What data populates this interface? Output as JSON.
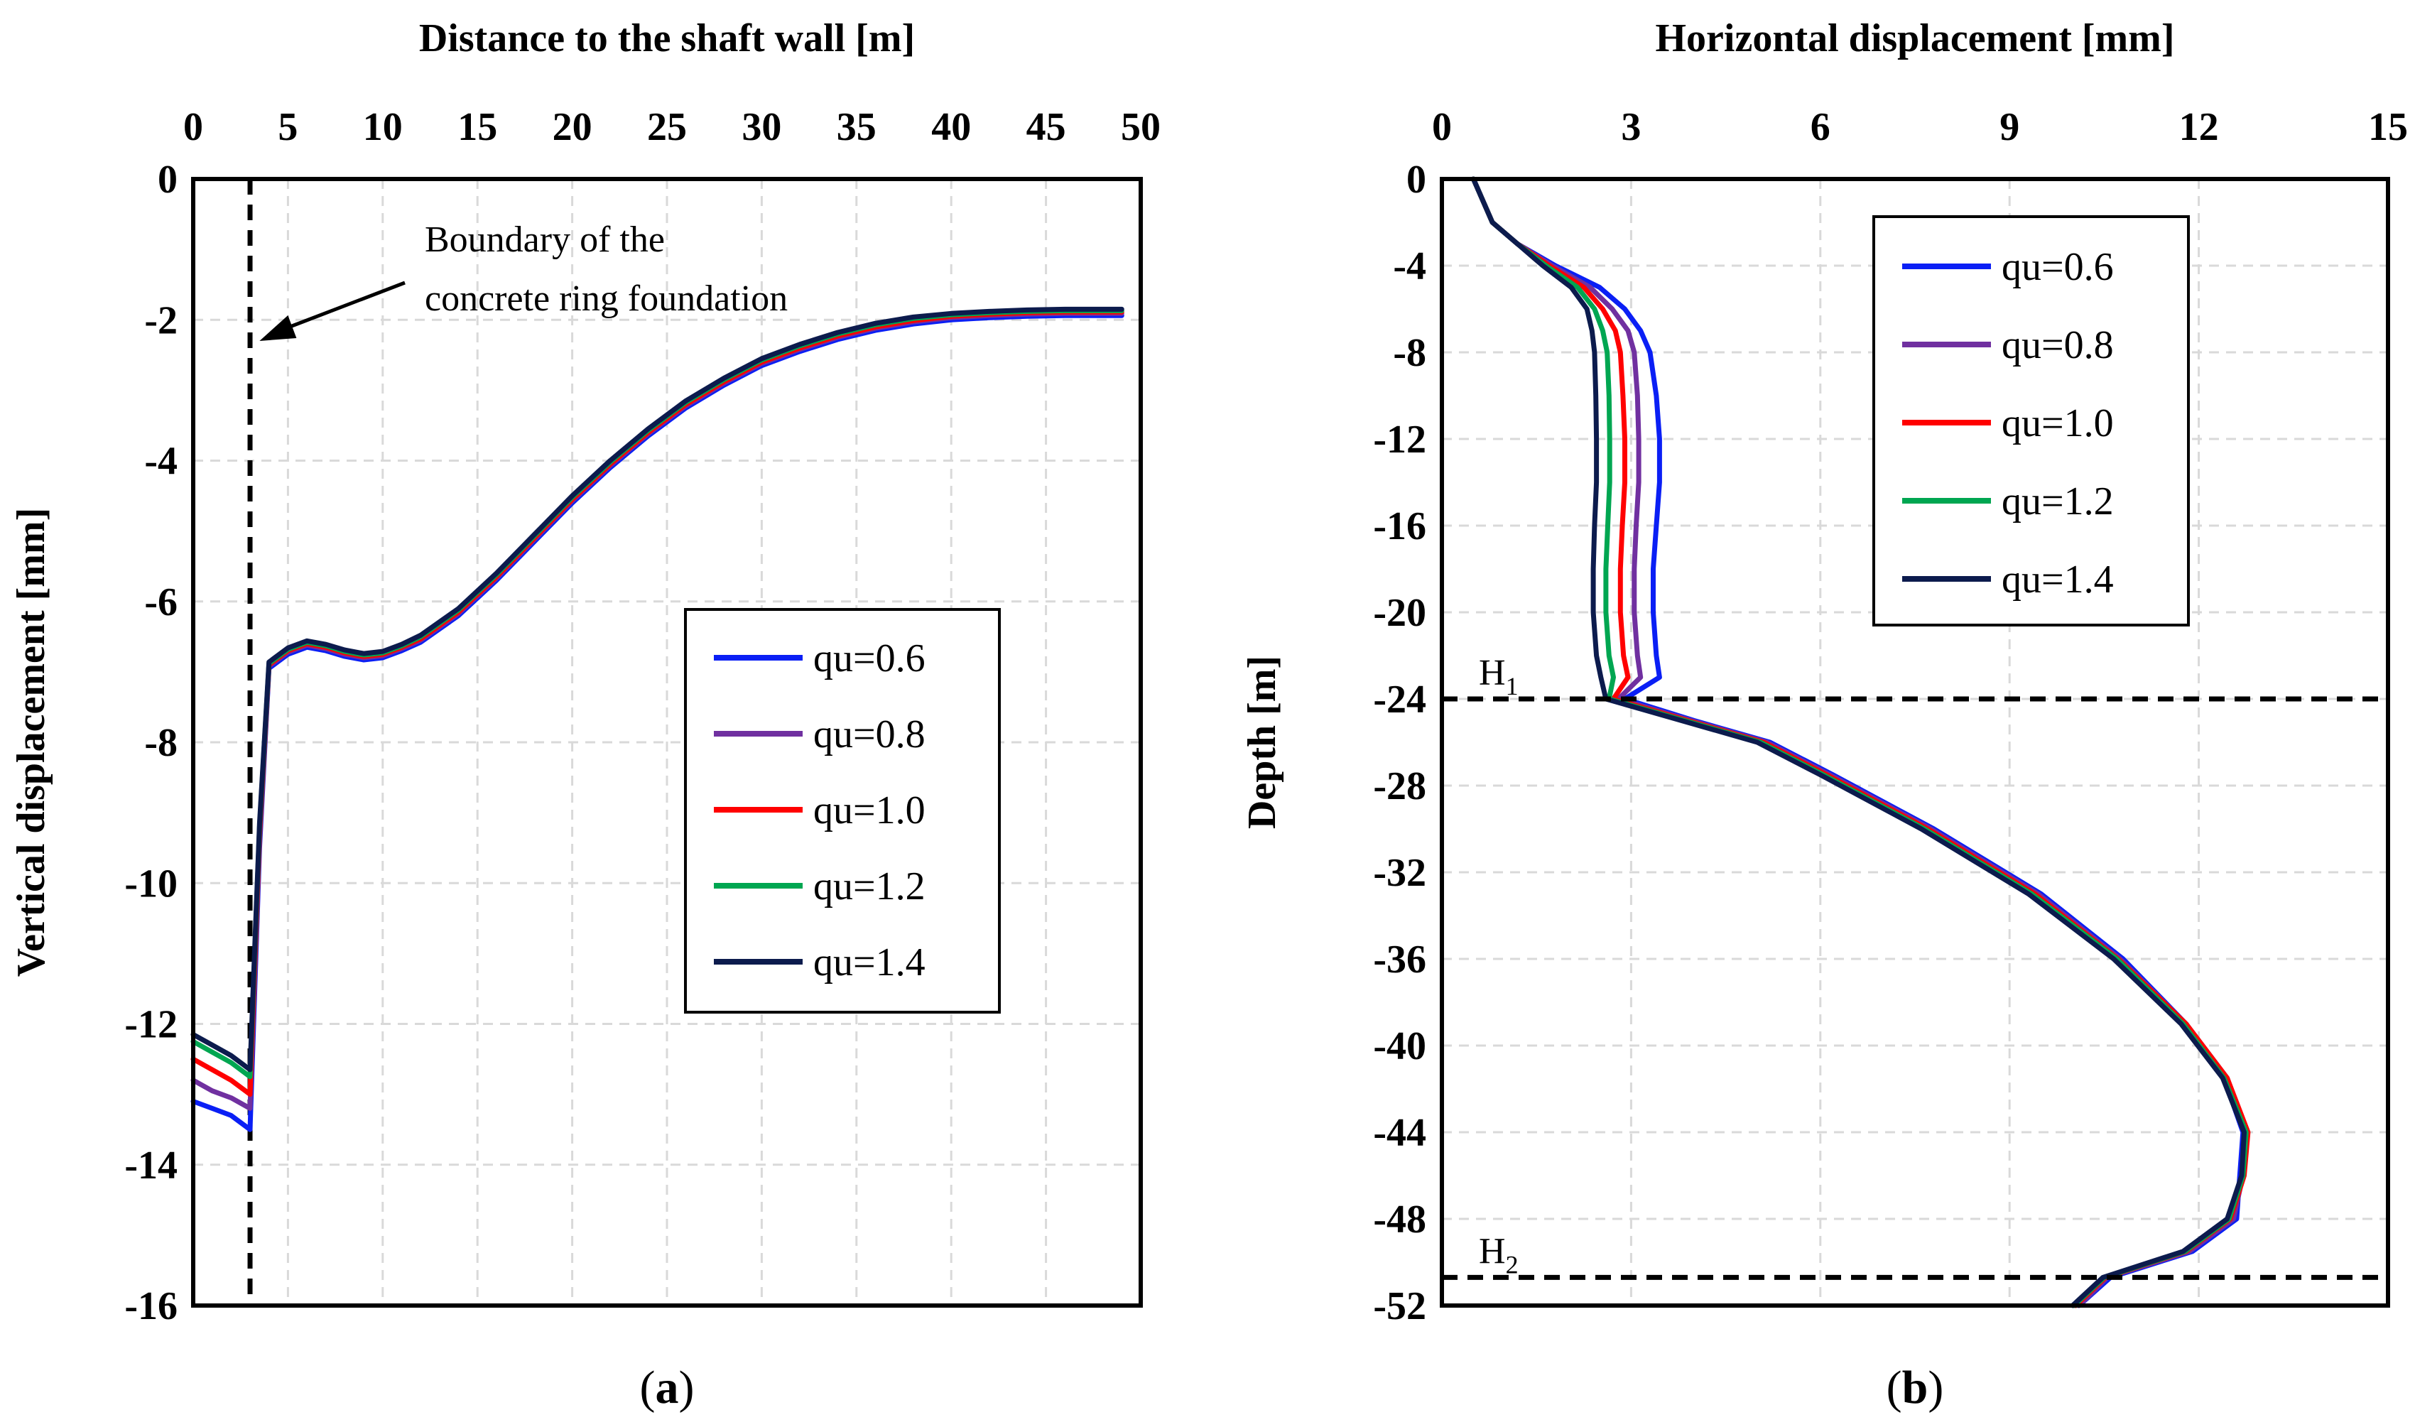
{
  "chart_data": [
    {
      "type": "line",
      "panel_label": {
        "open": "(",
        "letter": "a",
        "close": ")"
      },
      "title": "",
      "xlabel": "Distance to the shaft wall  [m]",
      "ylabel": "Vertical displacement [mm]",
      "xlim": [
        0,
        50
      ],
      "ylim": [
        -16,
        0
      ],
      "x_ticks": [
        0,
        5,
        10,
        15,
        20,
        25,
        30,
        35,
        40,
        45,
        50
      ],
      "y_ticks": [
        0,
        -2,
        -4,
        -6,
        -8,
        -10,
        -12,
        -14,
        -16
      ],
      "x_axis_position": "top",
      "grid": true,
      "legend_position": "center-right",
      "vertical_line": {
        "x": 3,
        "style": "dashed"
      },
      "annotation": {
        "lines": [
          "Boundary of the",
          "concrete ring foundation"
        ],
        "arrow_to": [
          3.5,
          -2.3
        ]
      },
      "series": [
        {
          "name": "qu=0.6",
          "color": "#0a1ff5",
          "x": [
            0,
            1,
            2,
            3,
            3.5,
            4,
            5,
            6,
            7,
            8,
            9,
            10,
            11,
            12,
            14,
            16,
            18,
            20,
            22,
            24,
            26,
            28,
            30,
            32,
            34,
            36,
            38,
            40,
            42,
            44,
            46,
            48,
            49
          ],
          "y": [
            -13.1,
            -13.2,
            -13.3,
            -13.5,
            -9.5,
            -6.95,
            -6.75,
            -6.65,
            -6.7,
            -6.78,
            -6.83,
            -6.8,
            -6.7,
            -6.58,
            -6.2,
            -5.7,
            -5.15,
            -4.6,
            -4.1,
            -3.65,
            -3.25,
            -2.93,
            -2.65,
            -2.45,
            -2.28,
            -2.15,
            -2.06,
            -2.0,
            -1.97,
            -1.95,
            -1.94,
            -1.94,
            -1.94
          ]
        },
        {
          "name": "qu=0.8",
          "color": "#7030a0",
          "x": [
            0,
            1,
            2,
            3,
            3.5,
            4,
            5,
            6,
            7,
            8,
            9,
            10,
            11,
            12,
            14,
            16,
            18,
            20,
            22,
            24,
            26,
            28,
            30,
            32,
            34,
            36,
            38,
            40,
            42,
            44,
            46,
            48,
            49
          ],
          "y": [
            -12.8,
            -12.95,
            -13.05,
            -13.2,
            -9.4,
            -6.92,
            -6.72,
            -6.62,
            -6.67,
            -6.75,
            -6.8,
            -6.77,
            -6.67,
            -6.55,
            -6.17,
            -5.67,
            -5.12,
            -4.57,
            -4.07,
            -3.62,
            -3.22,
            -2.9,
            -2.62,
            -2.42,
            -2.25,
            -2.12,
            -2.03,
            -1.97,
            -1.94,
            -1.92,
            -1.91,
            -1.91,
            -1.91
          ]
        },
        {
          "name": "qu=1.0",
          "color": "#ff0000",
          "x": [
            0,
            1,
            2,
            3,
            3.5,
            4,
            5,
            6,
            7,
            8,
            9,
            10,
            11,
            12,
            14,
            16,
            18,
            20,
            22,
            24,
            26,
            28,
            30,
            32,
            34,
            36,
            38,
            40,
            42,
            44,
            46,
            48,
            49
          ],
          "y": [
            -12.5,
            -12.65,
            -12.8,
            -13.0,
            -9.3,
            -6.9,
            -6.7,
            -6.6,
            -6.65,
            -6.73,
            -6.78,
            -6.75,
            -6.65,
            -6.53,
            -6.15,
            -5.65,
            -5.1,
            -4.55,
            -4.05,
            -3.6,
            -3.2,
            -2.88,
            -2.6,
            -2.4,
            -2.23,
            -2.1,
            -2.01,
            -1.95,
            -1.92,
            -1.9,
            -1.89,
            -1.89,
            -1.89
          ]
        },
        {
          "name": "qu=1.2",
          "color": "#00a651",
          "x": [
            0,
            1,
            2,
            3,
            3.5,
            4,
            5,
            6,
            7,
            8,
            9,
            10,
            11,
            12,
            14,
            16,
            18,
            20,
            22,
            24,
            26,
            28,
            30,
            32,
            34,
            36,
            38,
            40,
            42,
            44,
            46,
            48,
            49
          ],
          "y": [
            -12.25,
            -12.4,
            -12.55,
            -12.75,
            -9.2,
            -6.88,
            -6.68,
            -6.58,
            -6.63,
            -6.71,
            -6.76,
            -6.73,
            -6.63,
            -6.5,
            -6.12,
            -5.62,
            -5.07,
            -4.52,
            -4.02,
            -3.57,
            -3.17,
            -2.85,
            -2.57,
            -2.37,
            -2.2,
            -2.07,
            -1.98,
            -1.93,
            -1.9,
            -1.88,
            -1.87,
            -1.87,
            -1.87
          ]
        },
        {
          "name": "qu=1.4",
          "color": "#0c1b4d",
          "x": [
            0,
            1,
            2,
            3,
            3.5,
            4,
            5,
            6,
            7,
            8,
            9,
            10,
            11,
            12,
            14,
            16,
            18,
            20,
            22,
            24,
            26,
            28,
            30,
            32,
            34,
            36,
            38,
            40,
            42,
            44,
            46,
            48,
            49
          ],
          "y": [
            -12.15,
            -12.3,
            -12.45,
            -12.65,
            -9.15,
            -6.86,
            -6.66,
            -6.56,
            -6.61,
            -6.69,
            -6.74,
            -6.71,
            -6.61,
            -6.48,
            -6.1,
            -5.6,
            -5.05,
            -4.5,
            -4.0,
            -3.55,
            -3.15,
            -2.83,
            -2.55,
            -2.35,
            -2.18,
            -2.05,
            -1.96,
            -1.91,
            -1.88,
            -1.86,
            -1.85,
            -1.85,
            -1.85
          ]
        }
      ]
    },
    {
      "type": "line",
      "panel_label": {
        "open": "(",
        "letter": "b",
        "close": ")"
      },
      "title": "",
      "xlabel": "Horizontal displacement [mm]",
      "ylabel": "Depth [m]",
      "xlim": [
        0,
        15
      ],
      "ylim": [
        -52,
        0
      ],
      "x_ticks": [
        0,
        3,
        6,
        9,
        12,
        15
      ],
      "y_ticks": [
        0,
        -4,
        -8,
        -12,
        -16,
        -20,
        -24,
        -28,
        -32,
        -36,
        -40,
        -44,
        -48,
        -52
      ],
      "x_axis_position": "top",
      "grid": true,
      "legend_position": "top-right",
      "horizontal_lines": [
        {
          "y": -24,
          "style": "dashed",
          "label_main": "H",
          "label_sub": "1"
        },
        {
          "y": -50.7,
          "style": "dashed",
          "label_main": "H",
          "label_sub": "2"
        }
      ],
      "series": [
        {
          "name": "qu=0.6",
          "color": "#0a1ff5",
          "x": [
            0.5,
            0.8,
            1.2,
            1.8,
            2.5,
            2.9,
            3.15,
            3.3,
            3.4,
            3.45,
            3.45,
            3.4,
            3.35,
            3.35,
            3.4,
            3.45,
            2.9,
            4.0,
            5.2,
            6.2,
            7.8,
            9.5,
            10.8,
            11.8,
            12.4,
            12.7,
            12.65,
            12.6,
            11.9,
            10.6,
            10.1
          ],
          "y": [
            0,
            -2,
            -3,
            -4,
            -5,
            -6,
            -7,
            -8,
            -10,
            -12,
            -14,
            -16,
            -18,
            -20,
            -22,
            -23,
            -24,
            -25,
            -26,
            -27.5,
            -30,
            -33,
            -36,
            -39,
            -41.5,
            -44,
            -46,
            -48,
            -49.5,
            -50.7,
            -52
          ]
        },
        {
          "name": "qu=0.8",
          "color": "#7030a0",
          "x": [
            0.5,
            0.8,
            1.2,
            1.75,
            2.35,
            2.7,
            2.95,
            3.05,
            3.1,
            3.12,
            3.12,
            3.08,
            3.05,
            3.05,
            3.1,
            3.15,
            2.8,
            3.95,
            5.15,
            6.15,
            7.75,
            9.45,
            10.75,
            11.8,
            12.45,
            12.75,
            12.7,
            12.55,
            11.85,
            10.55,
            10.1
          ],
          "y": [
            0,
            -2,
            -3,
            -4,
            -5,
            -6,
            -7,
            -8,
            -10,
            -12,
            -14,
            -16,
            -18,
            -20,
            -22,
            -23,
            -24,
            -25,
            -26,
            -27.5,
            -30,
            -33,
            -36,
            -39,
            -41.5,
            -44,
            -46,
            -48,
            -49.5,
            -50.7,
            -52
          ]
        },
        {
          "name": "qu=1.0",
          "color": "#ff0000",
          "x": [
            0.5,
            0.8,
            1.2,
            1.7,
            2.25,
            2.55,
            2.75,
            2.83,
            2.87,
            2.9,
            2.9,
            2.86,
            2.83,
            2.83,
            2.88,
            2.95,
            2.72,
            3.9,
            5.1,
            6.1,
            7.7,
            9.4,
            10.72,
            11.8,
            12.45,
            12.78,
            12.72,
            12.5,
            11.8,
            10.52,
            10.05
          ],
          "y": [
            0,
            -2,
            -3,
            -4,
            -5,
            -6,
            -7,
            -8,
            -10,
            -12,
            -14,
            -16,
            -18,
            -20,
            -22,
            -23,
            -24,
            -25,
            -26,
            -27.5,
            -30,
            -33,
            -36,
            -39,
            -41.5,
            -44,
            -46,
            -48,
            -49.5,
            -50.7,
            -52
          ]
        },
        {
          "name": "qu=1.2",
          "color": "#00a651",
          "x": [
            0.5,
            0.8,
            1.2,
            1.65,
            2.15,
            2.42,
            2.55,
            2.62,
            2.65,
            2.66,
            2.66,
            2.63,
            2.6,
            2.6,
            2.65,
            2.72,
            2.65,
            3.85,
            5.05,
            6.05,
            7.65,
            9.35,
            10.7,
            11.75,
            12.4,
            12.75,
            12.7,
            12.48,
            11.78,
            10.5,
            10.02
          ],
          "y": [
            0,
            -2,
            -3,
            -4,
            -5,
            -6,
            -7,
            -8,
            -10,
            -12,
            -14,
            -16,
            -18,
            -20,
            -22,
            -23,
            -24,
            -25,
            -26,
            -27.5,
            -30,
            -33,
            -36,
            -39,
            -41.5,
            -44,
            -46,
            -48,
            -49.5,
            -50.7,
            -52
          ]
        },
        {
          "name": "qu=1.4",
          "color": "#0c1b4d",
          "x": [
            0.5,
            0.8,
            1.2,
            1.6,
            2.05,
            2.3,
            2.38,
            2.42,
            2.44,
            2.45,
            2.45,
            2.42,
            2.4,
            2.4,
            2.45,
            2.52,
            2.6,
            3.8,
            5.0,
            6.0,
            7.6,
            9.3,
            10.65,
            11.72,
            12.38,
            12.72,
            12.68,
            12.45,
            11.75,
            10.48,
            10.0
          ],
          "y": [
            0,
            -2,
            -3,
            -4,
            -5,
            -6,
            -7,
            -8,
            -10,
            -12,
            -14,
            -16,
            -18,
            -20,
            -22,
            -23,
            -24,
            -25,
            -26,
            -27.5,
            -30,
            -33,
            -36,
            -39,
            -41.5,
            -44,
            -46,
            -48,
            -49.5,
            -50.7,
            -52
          ]
        }
      ]
    }
  ]
}
